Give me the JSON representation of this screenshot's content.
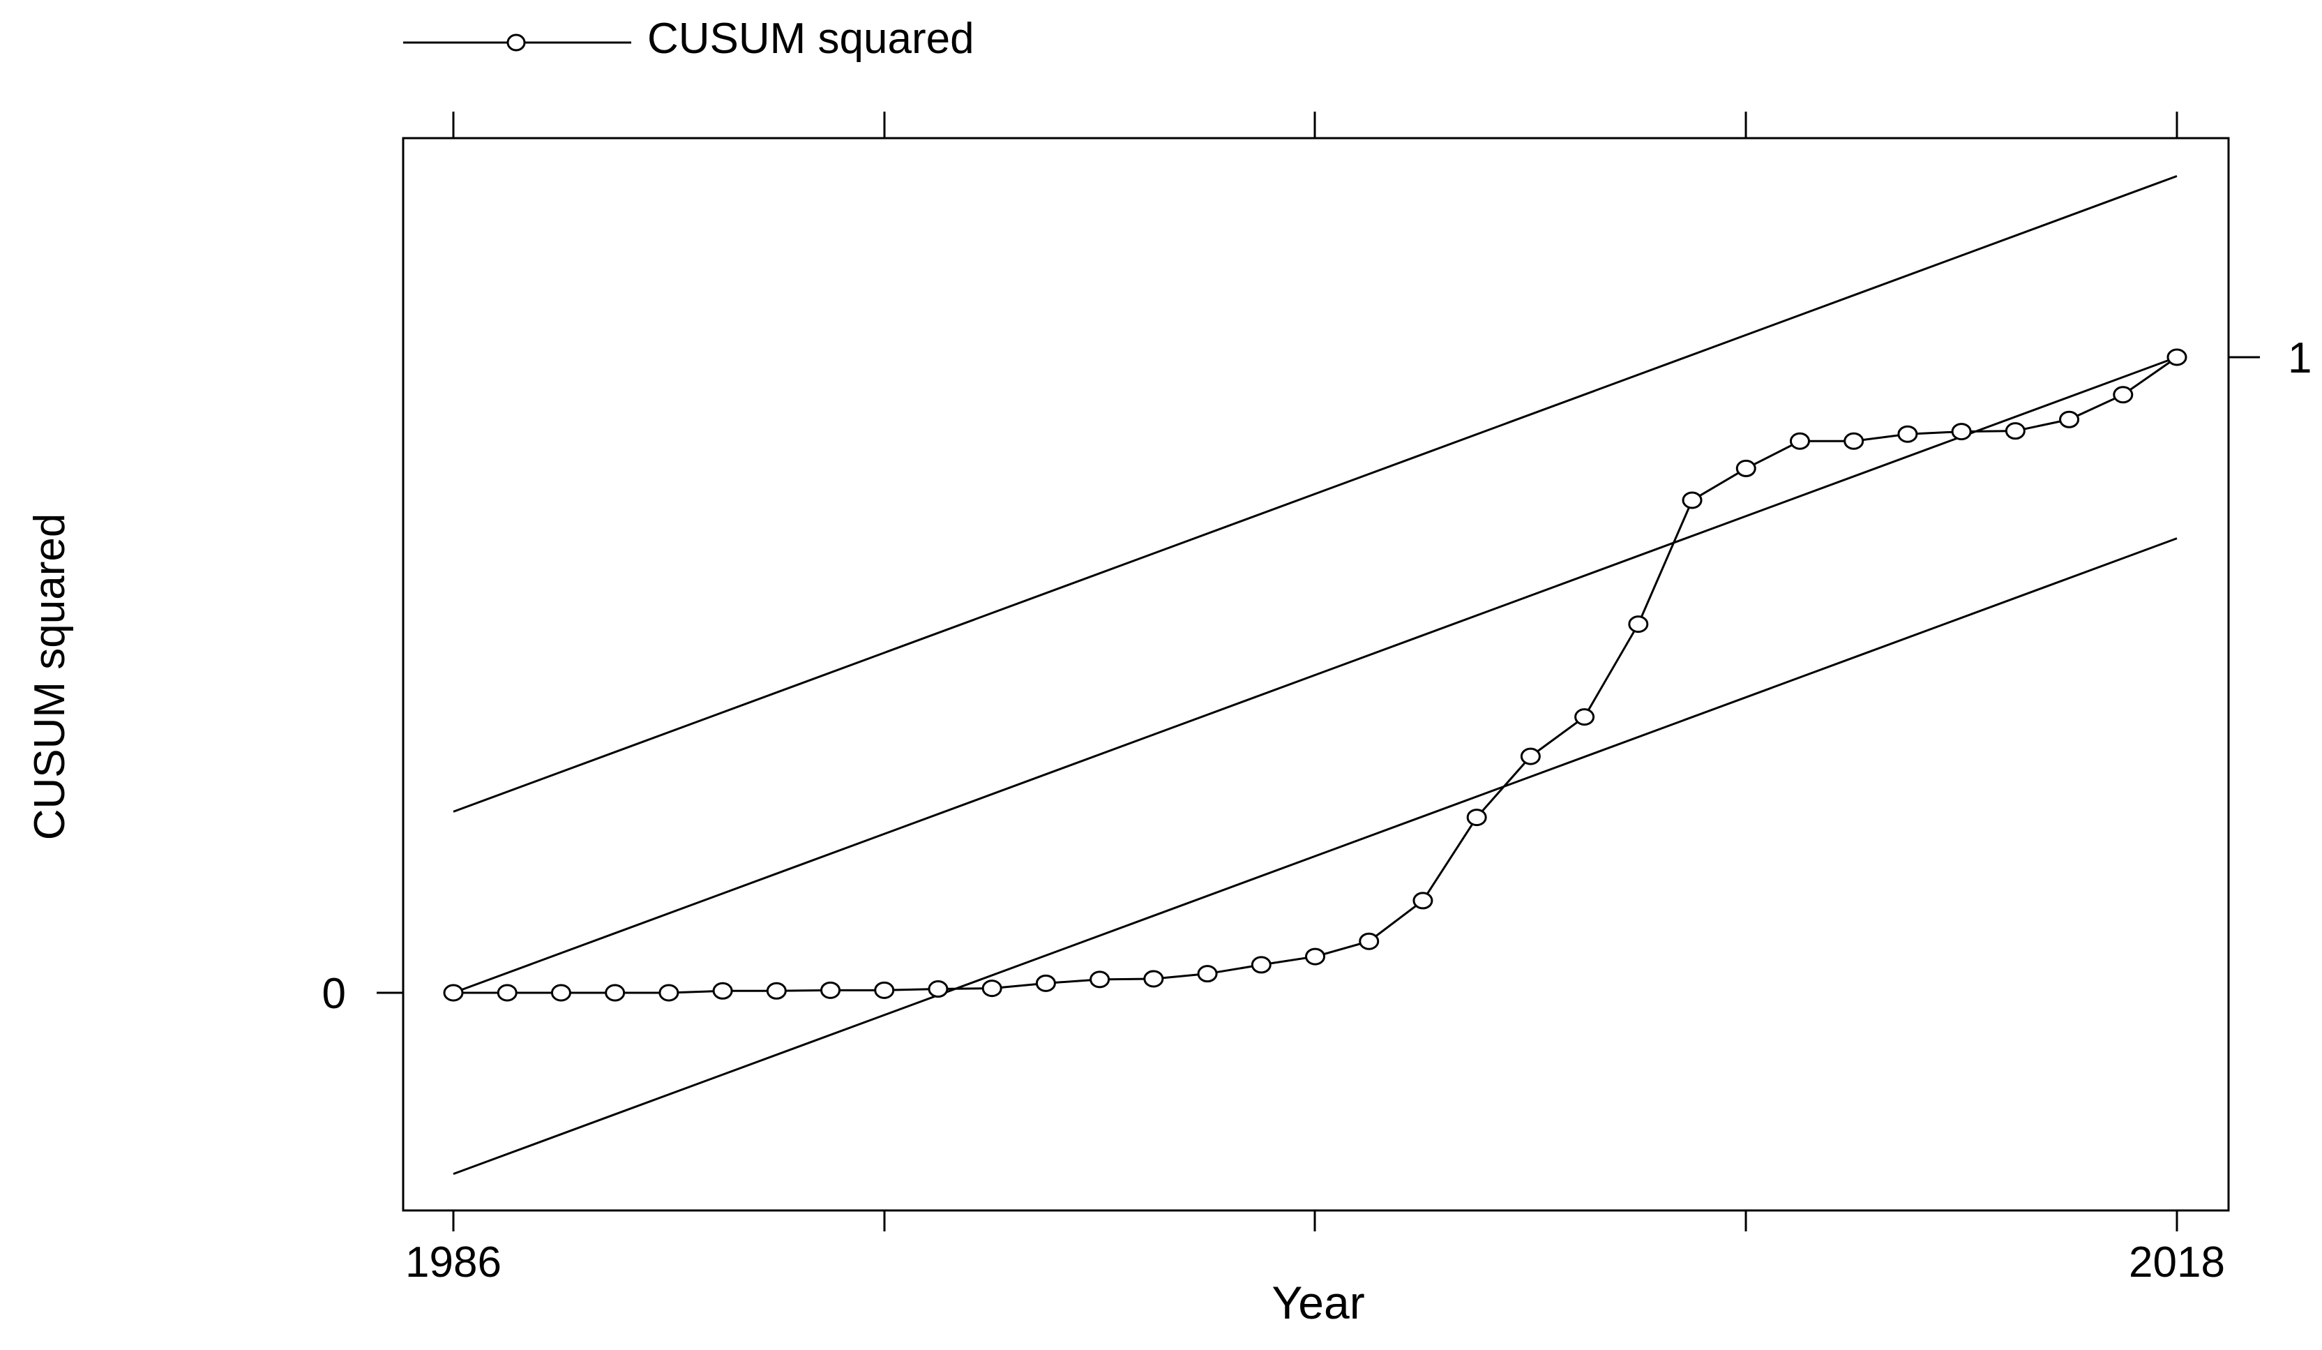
{
  "chart_data": {
    "type": "line",
    "title": "",
    "xlabel": "Year",
    "ylabel": "CUSUM squared",
    "xlim": [
      1986,
      2018
    ],
    "x_tick_labels": [
      "1986",
      "2018"
    ],
    "y_tick_labels": [
      "0",
      "1"
    ],
    "grid": false,
    "legend_position": "top-left",
    "legend": [
      "CUSUM squared"
    ],
    "x": [
      1986,
      1987,
      1988,
      1989,
      1990,
      1991,
      1992,
      1993,
      1994,
      1995,
      1996,
      1997,
      1998,
      1999,
      2000,
      2001,
      2002,
      2003,
      2004,
      2005,
      2006,
      2007,
      2008,
      2009,
      2010,
      2011,
      2012,
      2013,
      2014,
      2015,
      2016,
      2017,
      2018
    ],
    "series": [
      {
        "name": "CUSUM squared",
        "marker": "circle",
        "values": [
          0.0,
          0.0,
          0.0,
          0.0,
          0.0,
          0.003,
          0.003,
          0.004,
          0.004,
          0.006,
          0.007,
          0.015,
          0.021,
          0.022,
          0.03,
          0.044,
          0.057,
          0.081,
          0.145,
          0.276,
          0.372,
          0.434,
          0.58,
          0.775,
          0.825,
          0.868,
          0.868,
          0.879,
          0.883,
          0.884,
          0.902,
          0.941,
          1.0
        ]
      }
    ],
    "bounds": [
      {
        "x": [
          1986,
          2018
        ],
        "values": [
          0.285,
          1.285
        ]
      },
      {
        "x": [
          1986,
          2018
        ],
        "values": [
          0.0,
          1.0
        ]
      },
      {
        "x": [
          1986,
          2018
        ],
        "values": [
          -0.285,
          0.715
        ]
      }
    ]
  }
}
